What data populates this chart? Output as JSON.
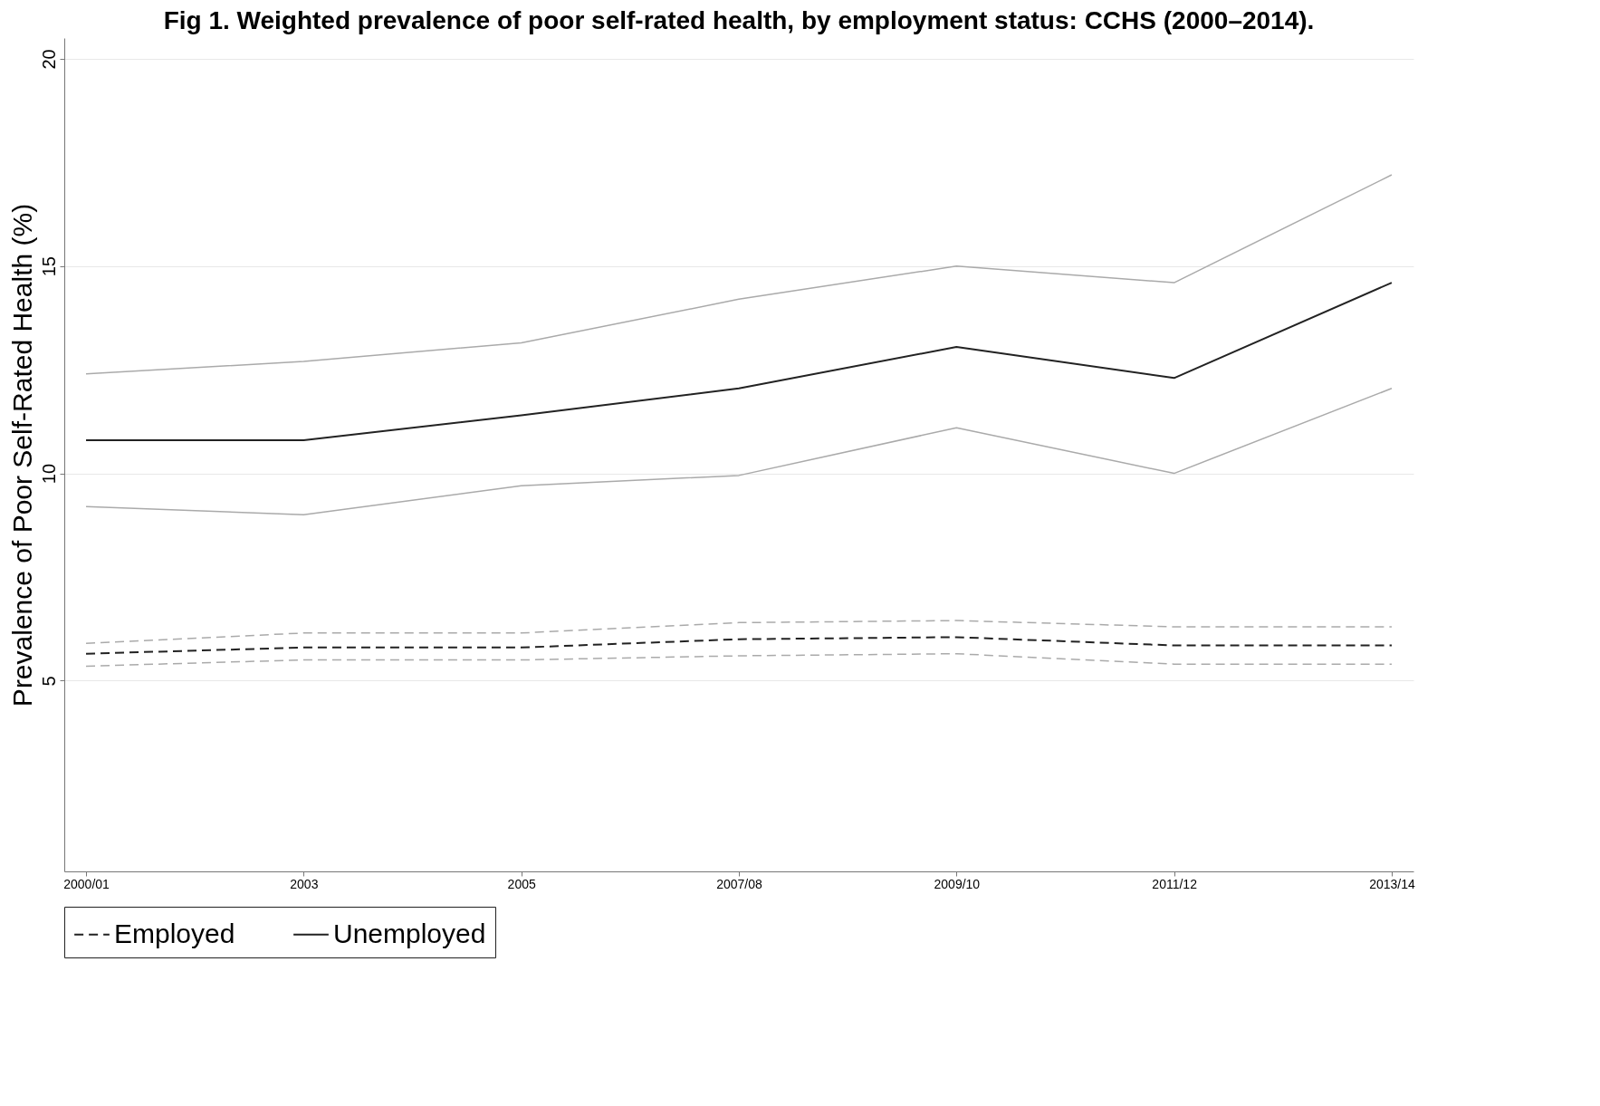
{
  "chart_data": {
    "type": "line",
    "title": "Fig 1. Weighted prevalence of poor self-rated health, by employment status: CCHS (2000–2014).",
    "ylabel": "Prevalence of Poor Self-Rated Health (%)",
    "categories": [
      "2000/01",
      "2003",
      "2005",
      "2007/08",
      "2009/10",
      "2011/12",
      "2013/14"
    ],
    "series": [
      {
        "name": "Employed",
        "color": "#222222",
        "line_style": "dashed",
        "values": [
          5.65,
          5.8,
          5.8,
          6.0,
          6.05,
          5.85,
          5.85
        ]
      },
      {
        "color": "#aaaaaa",
        "line_style": "dashed",
        "values": [
          5.35,
          5.5,
          5.5,
          5.6,
          5.65,
          5.4,
          5.4
        ]
      },
      {
        "color": "#aaaaaa",
        "line_style": "dashed",
        "values": [
          5.9,
          6.15,
          6.15,
          6.4,
          6.45,
          6.3,
          6.3
        ]
      },
      {
        "name": "Unemployed",
        "color": "#222222",
        "line_style": "solid",
        "values": [
          10.8,
          10.8,
          11.4,
          12.05,
          13.05,
          12.3,
          14.6
        ]
      },
      {
        "color": "#aaaaaa",
        "line_style": "solid",
        "values": [
          9.2,
          9.0,
          9.7,
          9.95,
          11.1,
          10.0,
          12.05
        ]
      },
      {
        "color": "#aaaaaa",
        "line_style": "solid",
        "values": [
          12.4,
          12.7,
          13.15,
          14.2,
          15.0,
          14.6,
          17.2
        ]
      }
    ],
    "ylim": [
      0.4,
      20.5
    ],
    "yticks": [
      5,
      10,
      15,
      20
    ],
    "grid": "y",
    "legend": "bottom"
  }
}
